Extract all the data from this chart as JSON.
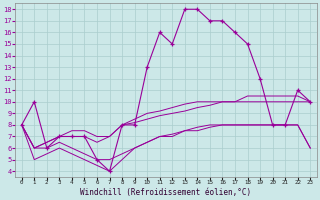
{
  "xlabel": "Windchill (Refroidissement éolien,°C)",
  "background_color": "#cce8e8",
  "grid_color": "#aacece",
  "line_color": "#990099",
  "x_values": [
    0,
    1,
    2,
    3,
    4,
    5,
    6,
    7,
    8,
    9,
    10,
    11,
    12,
    13,
    14,
    15,
    16,
    17,
    18,
    19,
    20,
    21,
    22,
    23
  ],
  "y_main": [
    8,
    10,
    6,
    7,
    7,
    7,
    5,
    4,
    8,
    8,
    13,
    16,
    15,
    18,
    18,
    17,
    17,
    16,
    15,
    12,
    8,
    8,
    11,
    10
  ],
  "y_band1_top": [
    8,
    6,
    6.5,
    7,
    7,
    7,
    6.5,
    7,
    8,
    8.2,
    8.5,
    8.8,
    9,
    9.2,
    9.5,
    9.7,
    10,
    10,
    10,
    10,
    10,
    10,
    10,
    10
  ],
  "y_band1_bot": [
    8,
    6,
    6,
    6.5,
    6,
    5.5,
    5,
    5,
    5.5,
    6,
    6.5,
    7,
    7.2,
    7.5,
    7.8,
    8,
    8,
    8,
    8,
    8,
    8,
    8,
    8,
    6
  ],
  "y_band2_top": [
    8,
    6,
    6.5,
    7,
    7.5,
    7.5,
    7,
    7,
    8,
    8.5,
    9,
    9.2,
    9.5,
    9.8,
    10,
    10,
    10,
    10,
    10.5,
    10.5,
    10.5,
    10.5,
    10.5,
    10
  ],
  "y_band2_bot": [
    8,
    5,
    5.5,
    6,
    5.5,
    5,
    4.5,
    4,
    5,
    6,
    6.5,
    7,
    7,
    7.5,
    7.5,
    7.8,
    8,
    8,
    8,
    8,
    8,
    8,
    8,
    6
  ],
  "ylim": [
    3.5,
    18.5
  ],
  "xlim": [
    -0.5,
    23.5
  ],
  "yticks": [
    4,
    5,
    6,
    7,
    8,
    9,
    10,
    11,
    12,
    13,
    14,
    15,
    16,
    17,
    18
  ],
  "xticks": [
    0,
    1,
    2,
    3,
    4,
    5,
    6,
    7,
    8,
    9,
    10,
    11,
    12,
    13,
    14,
    15,
    16,
    17,
    18,
    19,
    20,
    21,
    22,
    23
  ]
}
